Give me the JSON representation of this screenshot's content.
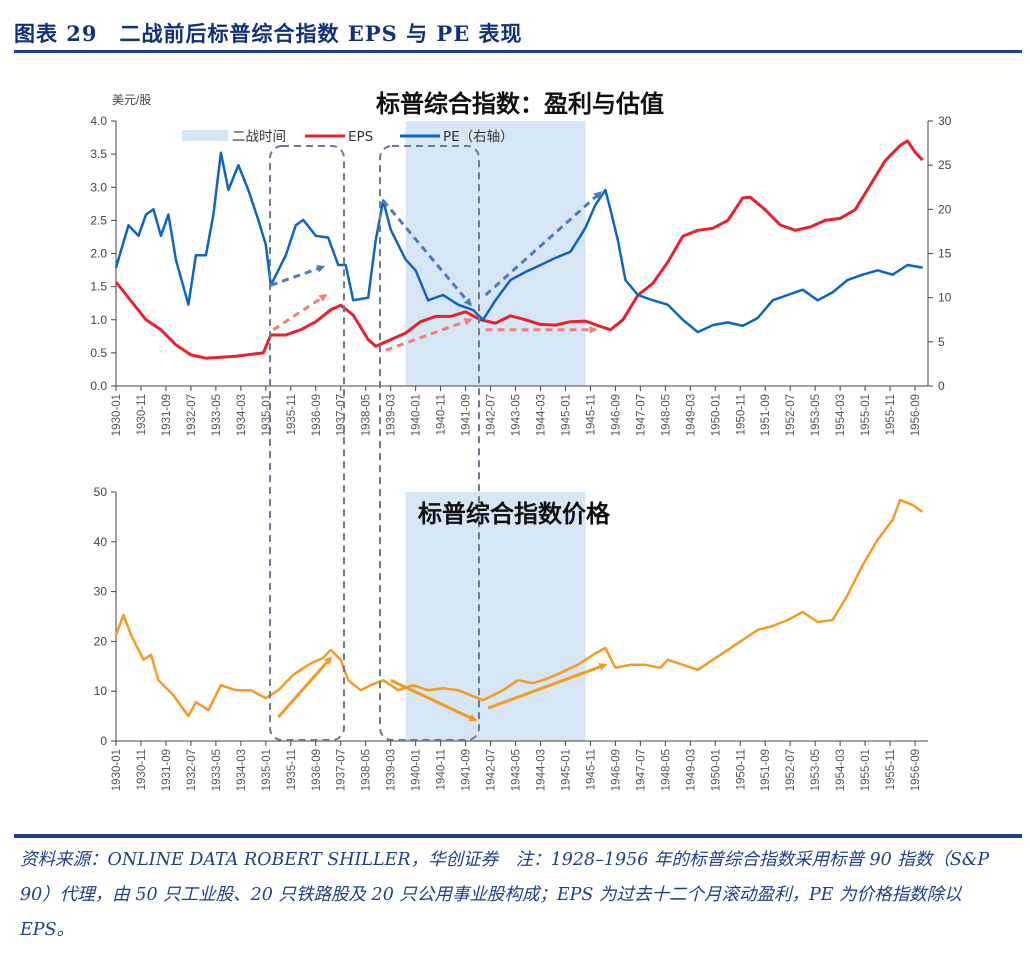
{
  "header": {
    "title": "图表 29　二战前后标普综合指数 EPS 与 PE 表现"
  },
  "footer": {
    "text": "资料来源：ONLINE DATA ROBERT SHILLER，华创证券　注：1928–1956 年的标普综合指数采用标普 90 指数（S&P 90）代理，由 50 只工业股、20 只铁路股及 20 只公用事业股构成；EPS 为过去十二个月滚动盈利，PE 为价格指数除以 EPS。"
  },
  "colors": {
    "eps": "#E8212B",
    "pe": "#0F64C0",
    "price": "#F59A23",
    "ww2": "#D6E6F4",
    "box": "#6B7B8E"
  },
  "chart_data": [
    {
      "type": "line",
      "title": "标普综合指数：盈利与估值",
      "ylabel": "美元/股",
      "ylim": [
        0,
        4
      ],
      "yticks": [
        "0.0",
        "0.5",
        "1.0",
        "1.5",
        "2.0",
        "2.5",
        "3.0",
        "3.5",
        "4.0"
      ],
      "y2lim": [
        0,
        30
      ],
      "y2ticks": [
        "0",
        "5",
        "10",
        "15",
        "20",
        "25",
        "30"
      ],
      "xticks": [
        "1930-01",
        "1930-11",
        "1931-09",
        "1932-07",
        "1933-05",
        "1934-03",
        "1935-01",
        "1935-11",
        "1936-09",
        "1937-07",
        "1938-05",
        "1939-03",
        "1940-01",
        "1940-11",
        "1941-09",
        "1942-07",
        "1943-05",
        "1944-03",
        "1945-01",
        "1945-11",
        "1946-09",
        "1947-07",
        "1948-05",
        "1949-03",
        "1950-01",
        "1950-11",
        "1951-09",
        "1952-07",
        "1953-05",
        "1954-03",
        "1955-01",
        "1955-11",
        "1956-09"
      ],
      "legend": {
        "placement": "top",
        "ww2": "二战时间",
        "eps": "EPS",
        "pe": "PE（右轴）"
      },
      "shaded_period": {
        "label": "二战时间",
        "start": "1939-09",
        "end": "1945-09"
      },
      "series": [
        {
          "name": "EPS",
          "axis": "left",
          "points": [
            [
              "1930-01",
              1.57
            ],
            [
              "1931-01",
              1.0
            ],
            [
              "1931-07",
              0.85
            ],
            [
              "1932-01",
              0.62
            ],
            [
              "1932-07",
              0.47
            ],
            [
              "1933-01",
              0.42
            ],
            [
              "1934-01",
              0.45
            ],
            [
              "1934-12",
              0.5
            ],
            [
              "1935-03",
              0.77
            ],
            [
              "1935-09",
              0.77
            ],
            [
              "1936-03",
              0.85
            ],
            [
              "1936-09",
              0.97
            ],
            [
              "1937-03",
              1.15
            ],
            [
              "1937-07",
              1.22
            ],
            [
              "1937-12",
              1.07
            ],
            [
              "1938-06",
              0.7
            ],
            [
              "1938-09",
              0.6
            ],
            [
              "1939-03",
              0.7
            ],
            [
              "1939-09",
              0.8
            ],
            [
              "1940-03",
              0.97
            ],
            [
              "1940-09",
              1.05
            ],
            [
              "1941-03",
              1.05
            ],
            [
              "1941-09",
              1.12
            ],
            [
              "1941-12",
              1.06
            ],
            [
              "1942-03",
              1.0
            ],
            [
              "1942-09",
              0.95
            ],
            [
              "1943-03",
              1.06
            ],
            [
              "1943-09",
              1.0
            ],
            [
              "1944-03",
              0.93
            ],
            [
              "1944-09",
              0.92
            ],
            [
              "1945-03",
              0.97
            ],
            [
              "1945-09",
              0.98
            ],
            [
              "1946-03",
              0.9
            ],
            [
              "1946-07",
              0.85
            ],
            [
              "1946-12",
              1.0
            ],
            [
              "1947-06",
              1.37
            ],
            [
              "1947-12",
              1.55
            ],
            [
              "1948-06",
              1.87
            ],
            [
              "1948-12",
              2.26
            ],
            [
              "1949-06",
              2.35
            ],
            [
              "1949-12",
              2.38
            ],
            [
              "1950-06",
              2.5
            ],
            [
              "1950-12",
              2.84
            ],
            [
              "1951-03",
              2.85
            ],
            [
              "1951-09",
              2.66
            ],
            [
              "1952-03",
              2.43
            ],
            [
              "1952-09",
              2.35
            ],
            [
              "1953-03",
              2.4
            ],
            [
              "1953-09",
              2.5
            ],
            [
              "1954-03",
              2.53
            ],
            [
              "1954-09",
              2.66
            ],
            [
              "1955-03",
              3.03
            ],
            [
              "1955-09",
              3.4
            ],
            [
              "1956-03",
              3.63
            ],
            [
              "1956-06",
              3.7
            ],
            [
              "1956-09",
              3.53
            ],
            [
              "1956-12",
              3.41
            ]
          ]
        },
        {
          "name": "PE（右轴）",
          "axis": "right",
          "points": [
            [
              "1930-01",
              13.4
            ],
            [
              "1930-06",
              18.2
            ],
            [
              "1930-10",
              17
            ],
            [
              "1931-01",
              19.4
            ],
            [
              "1931-04",
              20
            ],
            [
              "1931-07",
              17
            ],
            [
              "1931-10",
              19.4
            ],
            [
              "1932-01",
              14.3
            ],
            [
              "1932-06",
              9.2
            ],
            [
              "1932-09",
              14.8
            ],
            [
              "1933-01",
              14.8
            ],
            [
              "1933-04",
              19.4
            ],
            [
              "1933-07",
              26.4
            ],
            [
              "1933-10",
              22.2
            ],
            [
              "1934-02",
              25
            ],
            [
              "1934-06",
              22.2
            ],
            [
              "1934-10",
              18.8
            ],
            [
              "1935-01",
              16
            ],
            [
              "1935-03",
              11.4
            ],
            [
              "1935-09",
              14.8
            ],
            [
              "1936-01",
              18.2
            ],
            [
              "1936-04",
              18.8
            ],
            [
              "1936-09",
              17
            ],
            [
              "1937-02",
              16.8
            ],
            [
              "1937-06",
              13.7
            ],
            [
              "1937-09",
              13.7
            ],
            [
              "1937-12",
              9.7
            ],
            [
              "1938-06",
              10
            ],
            [
              "1938-09",
              16.5
            ],
            [
              "1938-12",
              21
            ],
            [
              "1939-03",
              17.7
            ],
            [
              "1939-09",
              14.3
            ],
            [
              "1940-01",
              13.1
            ],
            [
              "1940-06",
              9.7
            ],
            [
              "1940-12",
              10.3
            ],
            [
              "1941-06",
              9.2
            ],
            [
              "1941-12",
              8.6
            ],
            [
              "1942-04",
              7.5
            ],
            [
              "1942-09",
              9.7
            ],
            [
              "1943-03",
              12
            ],
            [
              "1943-09",
              12.9
            ],
            [
              "1944-03",
              13.7
            ],
            [
              "1944-09",
              14.5
            ],
            [
              "1945-03",
              15.2
            ],
            [
              "1945-09",
              17.9
            ],
            [
              "1946-01",
              20.5
            ],
            [
              "1946-05",
              22.2
            ],
            [
              "1946-07",
              20
            ],
            [
              "1946-10",
              16.5
            ],
            [
              "1947-01",
              12
            ],
            [
              "1947-06",
              10.3
            ],
            [
              "1947-12",
              9.7
            ],
            [
              "1948-06",
              9.2
            ],
            [
              "1948-12",
              7.5
            ],
            [
              "1949-06",
              6.1
            ],
            [
              "1949-12",
              6.9
            ],
            [
              "1950-06",
              7.2
            ],
            [
              "1950-12",
              6.8
            ],
            [
              "1951-06",
              7.7
            ],
            [
              "1951-12",
              9.7
            ],
            [
              "1952-06",
              10.3
            ],
            [
              "1952-12",
              10.9
            ],
            [
              "1953-06",
              9.7
            ],
            [
              "1953-12",
              10.6
            ],
            [
              "1954-06",
              12
            ],
            [
              "1954-12",
              12.6
            ],
            [
              "1955-06",
              13.1
            ],
            [
              "1955-12",
              12.6
            ],
            [
              "1956-06",
              13.7
            ],
            [
              "1956-12",
              13.4
            ]
          ]
        }
      ],
      "arrows": [
        {
          "axis": "right",
          "color": "pe",
          "from": [
            "1935-03",
            11.4
          ],
          "to": [
            "1936-12",
            13.5
          ]
        },
        {
          "axis": "left",
          "color": "eps",
          "from": [
            "1935-04",
            0.85
          ],
          "to": [
            "1937-01",
            1.37
          ]
        },
        {
          "axis": "right",
          "color": "pe",
          "from": [
            "1938-12",
            21
          ],
          "to": [
            "1941-11",
            9.2
          ]
        },
        {
          "axis": "left",
          "color": "eps",
          "from": [
            "1939-01",
            0.54
          ],
          "to": [
            "1941-11",
            1.0
          ]
        },
        {
          "axis": "right",
          "color": "pe",
          "from": [
            "1942-05",
            10.3
          ],
          "to": [
            "1946-03",
            21.9
          ]
        },
        {
          "axis": "left",
          "color": "eps",
          "from": [
            "1942-05",
            0.85
          ],
          "to": [
            "1946-01",
            0.85
          ]
        }
      ]
    },
    {
      "type": "line",
      "title": "标普综合指数价格",
      "ylim": [
        0,
        50
      ],
      "yticks": [
        "0",
        "10",
        "20",
        "30",
        "40",
        "50"
      ],
      "xticks": [
        "1930-01",
        "1930-11",
        "1931-09",
        "1932-07",
        "1933-05",
        "1934-03",
        "1935-01",
        "1935-11",
        "1936-09",
        "1937-07",
        "1938-05",
        "1939-03",
        "1940-01",
        "1940-11",
        "1941-09",
        "1942-07",
        "1943-05",
        "1944-03",
        "1945-01",
        "1945-11",
        "1946-09",
        "1947-07",
        "1948-05",
        "1949-03",
        "1950-01",
        "1950-11",
        "1951-09",
        "1952-07",
        "1953-05",
        "1954-03",
        "1955-01",
        "1955-11",
        "1956-09"
      ],
      "shaded_period": {
        "start": "1939-09",
        "end": "1945-09"
      },
      "series": [
        {
          "name": "Price",
          "points": [
            [
              "1930-01",
              21.3
            ],
            [
              "1930-04",
              25.3
            ],
            [
              "1930-07",
              21.3
            ],
            [
              "1930-12",
              16.3
            ],
            [
              "1931-03",
              17.3
            ],
            [
              "1931-06",
              12.2
            ],
            [
              "1931-12",
              9.2
            ],
            [
              "1932-06",
              5
            ],
            [
              "1932-09",
              7.8
            ],
            [
              "1933-02",
              6.2
            ],
            [
              "1933-07",
              11.2
            ],
            [
              "1934-01",
              10.2
            ],
            [
              "1934-07",
              10.2
            ],
            [
              "1935-01",
              8.6
            ],
            [
              "1935-06",
              10.2
            ],
            [
              "1935-12",
              13.3
            ],
            [
              "1936-06",
              15.3
            ],
            [
              "1936-12",
              16.7
            ],
            [
              "1937-03",
              18.3
            ],
            [
              "1937-07",
              16.3
            ],
            [
              "1937-10",
              12.2
            ],
            [
              "1938-03",
              10.2
            ],
            [
              "1938-07",
              11.2
            ],
            [
              "1938-12",
              12.2
            ],
            [
              "1939-06",
              10.2
            ],
            [
              "1939-12",
              11.2
            ],
            [
              "1940-06",
              10.2
            ],
            [
              "1940-12",
              10.6
            ],
            [
              "1941-06",
              10.2
            ],
            [
              "1941-12",
              9
            ],
            [
              "1942-04",
              8.2
            ],
            [
              "1942-12",
              10.2
            ],
            [
              "1943-06",
              12.2
            ],
            [
              "1943-12",
              11.6
            ],
            [
              "1944-06",
              12.6
            ],
            [
              "1944-12",
              13.9
            ],
            [
              "1945-06",
              15.3
            ],
            [
              "1945-12",
              17.3
            ],
            [
              "1946-05",
              18.7
            ],
            [
              "1946-09",
              14.7
            ],
            [
              "1947-03",
              15.3
            ],
            [
              "1947-09",
              15.3
            ],
            [
              "1948-03",
              14.7
            ],
            [
              "1948-06",
              16.3
            ],
            [
              "1948-12",
              15.3
            ],
            [
              "1949-06",
              14.3
            ],
            [
              "1949-12",
              16.3
            ],
            [
              "1950-06",
              18.3
            ],
            [
              "1950-12",
              20.3
            ],
            [
              "1951-06",
              22.3
            ],
            [
              "1951-12",
              23.1
            ],
            [
              "1952-06",
              24.3
            ],
            [
              "1952-12",
              25.9
            ],
            [
              "1953-06",
              23.9
            ],
            [
              "1953-12",
              24.3
            ],
            [
              "1954-06",
              29.3
            ],
            [
              "1954-12",
              35.3
            ],
            [
              "1955-06",
              40.4
            ],
            [
              "1955-12",
              44.4
            ],
            [
              "1956-03",
              48.4
            ],
            [
              "1956-08",
              47.4
            ],
            [
              "1956-12",
              46
            ]
          ]
        }
      ],
      "arrows": [
        {
          "color": "price",
          "from": [
            "1935-06",
            4.8
          ],
          "to": [
            "1937-03",
            16.7
          ]
        },
        {
          "color": "price",
          "from": [
            "1939-03",
            12.2
          ],
          "to": [
            "1942-01",
            4.2
          ]
        },
        {
          "color": "price",
          "from": [
            "1942-06",
            6.6
          ],
          "to": [
            "1946-05",
            15.3
          ]
        }
      ]
    }
  ]
}
